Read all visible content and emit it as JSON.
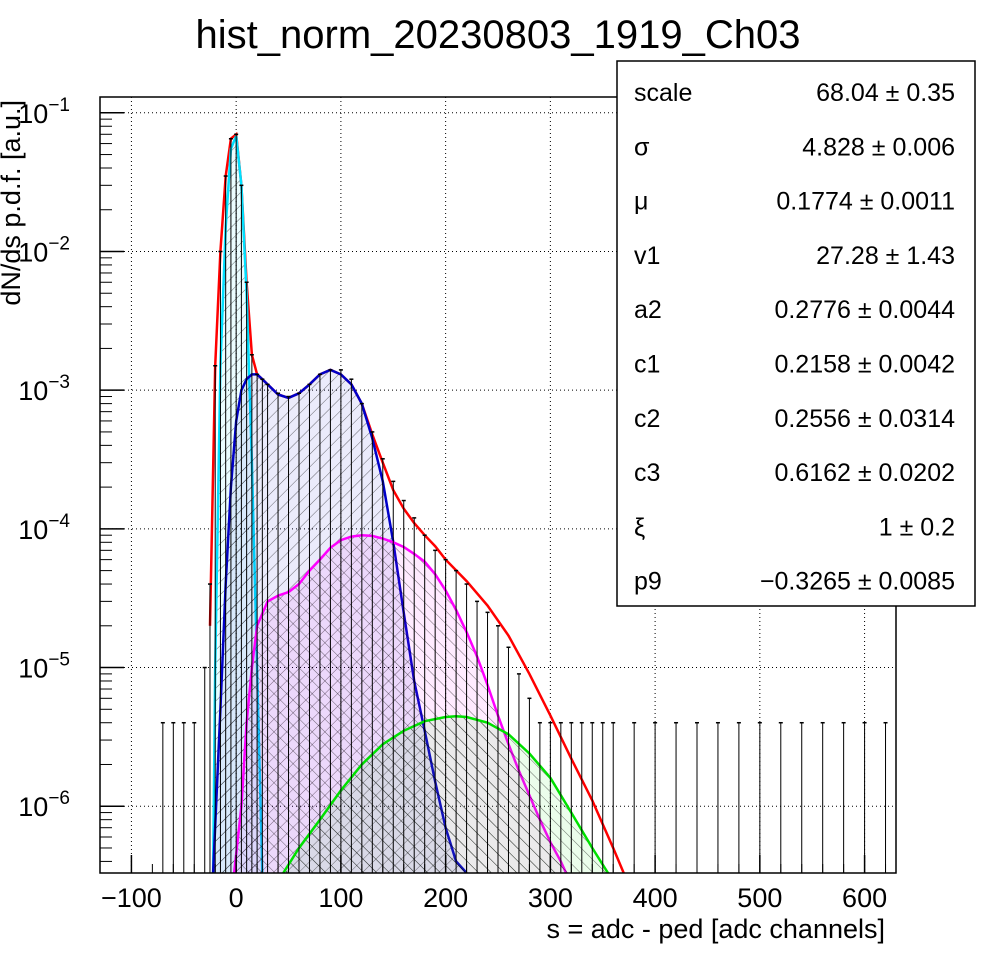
{
  "chart_data": {
    "type": "histogram",
    "title": "hist_norm_20230803_1919_Ch03",
    "xlabel": "s = adc - ped [adc channels]",
    "ylabel": "dN/ds p.d.f. [a.u.]",
    "xlim": [
      -130,
      630
    ],
    "ylim": [
      3.3e-07,
      0.13
    ],
    "yscale": "log",
    "grid": true,
    "x_ticks": [
      -100,
      0,
      100,
      200,
      300,
      400,
      500,
      600
    ],
    "y_ticks": [
      {
        "value": 1e-06,
        "base": "10",
        "exp": "−6"
      },
      {
        "value": 1e-05,
        "base": "10",
        "exp": "−5"
      },
      {
        "value": 0.0001,
        "base": "10",
        "exp": "−4"
      },
      {
        "value": 0.001,
        "base": "10",
        "exp": "−3"
      },
      {
        "value": 0.01,
        "base": "10",
        "exp": "−2"
      },
      {
        "value": 0.1,
        "base": "10",
        "exp": "−1"
      }
    ],
    "data_histogram": {
      "color": "#000000",
      "x": [
        -70,
        -60,
        -50,
        -40,
        -30,
        -25,
        -20,
        -15,
        -10,
        -5,
        0,
        5,
        10,
        15,
        20,
        25,
        30,
        40,
        50,
        60,
        70,
        80,
        90,
        100,
        110,
        120,
        130,
        140,
        150,
        160,
        170,
        180,
        190,
        200,
        210,
        220,
        230,
        240,
        250,
        260,
        270,
        280,
        290,
        300,
        310,
        320,
        330,
        340,
        350,
        360,
        380,
        400,
        420,
        440,
        460,
        480,
        500,
        520,
        540,
        560,
        580,
        600,
        620
      ],
      "y": [
        4e-06,
        4e-06,
        4e-06,
        4e-06,
        1e-05,
        4e-05,
        0.0015,
        0.01,
        0.035,
        0.065,
        0.07,
        0.03,
        0.006,
        0.0018,
        0.0013,
        0.0012,
        0.0011,
        0.00095,
        0.0009,
        0.00095,
        0.0011,
        0.0013,
        0.0014,
        0.0014,
        0.0012,
        0.0008,
        0.0005,
        0.00032,
        0.00022,
        0.00016,
        0.00012,
        9e-05,
        7e-05,
        6e-05,
        5e-05,
        4e-05,
        3e-05,
        2.5e-05,
        2e-05,
        1.4e-05,
        9e-06,
        6e-06,
        4e-06,
        4e-06,
        4e-06,
        4e-06,
        4e-06,
        4e-06,
        4e-06,
        4e-06,
        4e-06,
        4e-06,
        4e-06,
        4e-06,
        4e-06,
        4e-06,
        4e-06,
        4e-06,
        4e-06,
        4e-06,
        4e-06,
        4e-06,
        4e-06
      ]
    },
    "series": [
      {
        "color": "#ff0000",
        "fill": false,
        "x": [
          -25,
          -20,
          -15,
          -10,
          -5,
          0,
          5,
          10,
          15,
          20,
          25,
          30,
          40,
          50,
          60,
          70,
          80,
          90,
          100,
          110,
          120,
          130,
          140,
          150,
          160,
          170,
          180,
          190,
          200,
          220,
          240,
          260,
          280,
          300,
          320,
          340,
          360,
          370
        ],
        "y": [
          2e-05,
          0.0015,
          0.01,
          0.035,
          0.065,
          0.07,
          0.03,
          0.006,
          0.0018,
          0.0013,
          0.0012,
          0.0011,
          0.00093,
          0.00088,
          0.00095,
          0.0011,
          0.0013,
          0.0014,
          0.0013,
          0.0011,
          0.0008,
          0.00048,
          0.0003,
          0.00019,
          0.00014,
          0.00011,
          9e-05,
          7.5e-05,
          6e-05,
          4.2e-05,
          2.8e-05,
          1.7e-05,
          9e-06,
          4.5e-06,
          2.2e-06,
          1.1e-06,
          5e-07,
          3.3e-07
        ]
      },
      {
        "color": "#00e0ff",
        "fill": true,
        "hatch": "up",
        "x": [
          -22,
          -20,
          -15,
          -10,
          -5,
          0,
          5,
          10,
          15,
          20,
          25
        ],
        "y": [
          3.3e-07,
          1e-05,
          0.0015,
          0.015,
          0.055,
          0.068,
          0.03,
          0.005,
          0.0003,
          1e-05,
          3.3e-07
        ]
      },
      {
        "color": "#0000c8",
        "fill": true,
        "hatch": "up",
        "x": [
          -22,
          -15,
          -10,
          -5,
          0,
          5,
          10,
          15,
          20,
          25,
          30,
          40,
          50,
          60,
          70,
          80,
          90,
          100,
          110,
          120,
          130,
          140,
          150,
          160,
          170,
          180,
          190,
          200,
          210,
          220
        ],
        "y": [
          3.3e-07,
          5e-06,
          4e-05,
          0.0002,
          0.0006,
          0.001,
          0.0012,
          0.0013,
          0.0013,
          0.0012,
          0.0011,
          0.00093,
          0.00088,
          0.00095,
          0.0011,
          0.0013,
          0.0014,
          0.0013,
          0.0011,
          0.0008,
          0.00045,
          0.00022,
          8e-05,
          2.5e-05,
          8e-06,
          3.5e-06,
          1.5e-06,
          7e-07,
          4e-07,
          3.3e-07
        ]
      },
      {
        "color": "#ff00ff",
        "fill": true,
        "hatch": "down",
        "x": [
          -2,
          5,
          10,
          15,
          20,
          30,
          40,
          50,
          60,
          70,
          80,
          90,
          100,
          110,
          120,
          130,
          140,
          150,
          160,
          170,
          180,
          190,
          200,
          210,
          220,
          230,
          240,
          250,
          260,
          270,
          280,
          290,
          300,
          310,
          315
        ],
        "y": [
          3.3e-07,
          1e-06,
          4e-06,
          1e-05,
          2e-05,
          3e-05,
          3.3e-05,
          3.5e-05,
          4e-05,
          5e-05,
          6e-05,
          7.3e-05,
          8.3e-05,
          8.8e-05,
          9e-05,
          8.9e-05,
          8.5e-05,
          8e-05,
          7.4e-05,
          6.6e-05,
          5.8e-05,
          4.7e-05,
          3.6e-05,
          2.6e-05,
          1.8e-05,
          1.2e-05,
          7.5e-06,
          4.5e-06,
          2.8e-06,
          1.8e-06,
          1.2e-06,
          8e-07,
          5.5e-07,
          4e-07,
          3.3e-07
        ]
      },
      {
        "color": "#00e000",
        "fill": true,
        "hatch": "down",
        "x": [
          45,
          60,
          80,
          100,
          120,
          140,
          160,
          180,
          200,
          210,
          220,
          240,
          260,
          280,
          300,
          320,
          340,
          355
        ],
        "y": [
          3.3e-07,
          5e-07,
          8e-07,
          1.3e-06,
          2e-06,
          2.8e-06,
          3.5e-06,
          4.1e-06,
          4.4e-06,
          4.45e-06,
          4.4e-06,
          4e-06,
          3.3e-06,
          2.4e-06,
          1.6e-06,
          9e-07,
          5e-07,
          3.3e-07
        ]
      }
    ],
    "stats_box": [
      {
        "label": "scale",
        "value": "68.04 ± 0.35"
      },
      {
        "label": "σ",
        "value": "4.828 ± 0.006"
      },
      {
        "label": "μ",
        "value": "0.1774 ± 0.0011"
      },
      {
        "label": "v1",
        "value": "27.28 ± 1.43"
      },
      {
        "label": "a2",
        "value": "0.2776 ± 0.0044"
      },
      {
        "label": "c1",
        "value": "0.2158 ± 0.0042"
      },
      {
        "label": "c2",
        "value": "0.2556 ± 0.0314"
      },
      {
        "label": "c3",
        "value": "0.6162 ± 0.0202"
      },
      {
        "label": "ξ",
        "value": "1 ± 0.2"
      },
      {
        "label": "p9",
        "value": "−0.3265 ± 0.0085"
      }
    ]
  }
}
